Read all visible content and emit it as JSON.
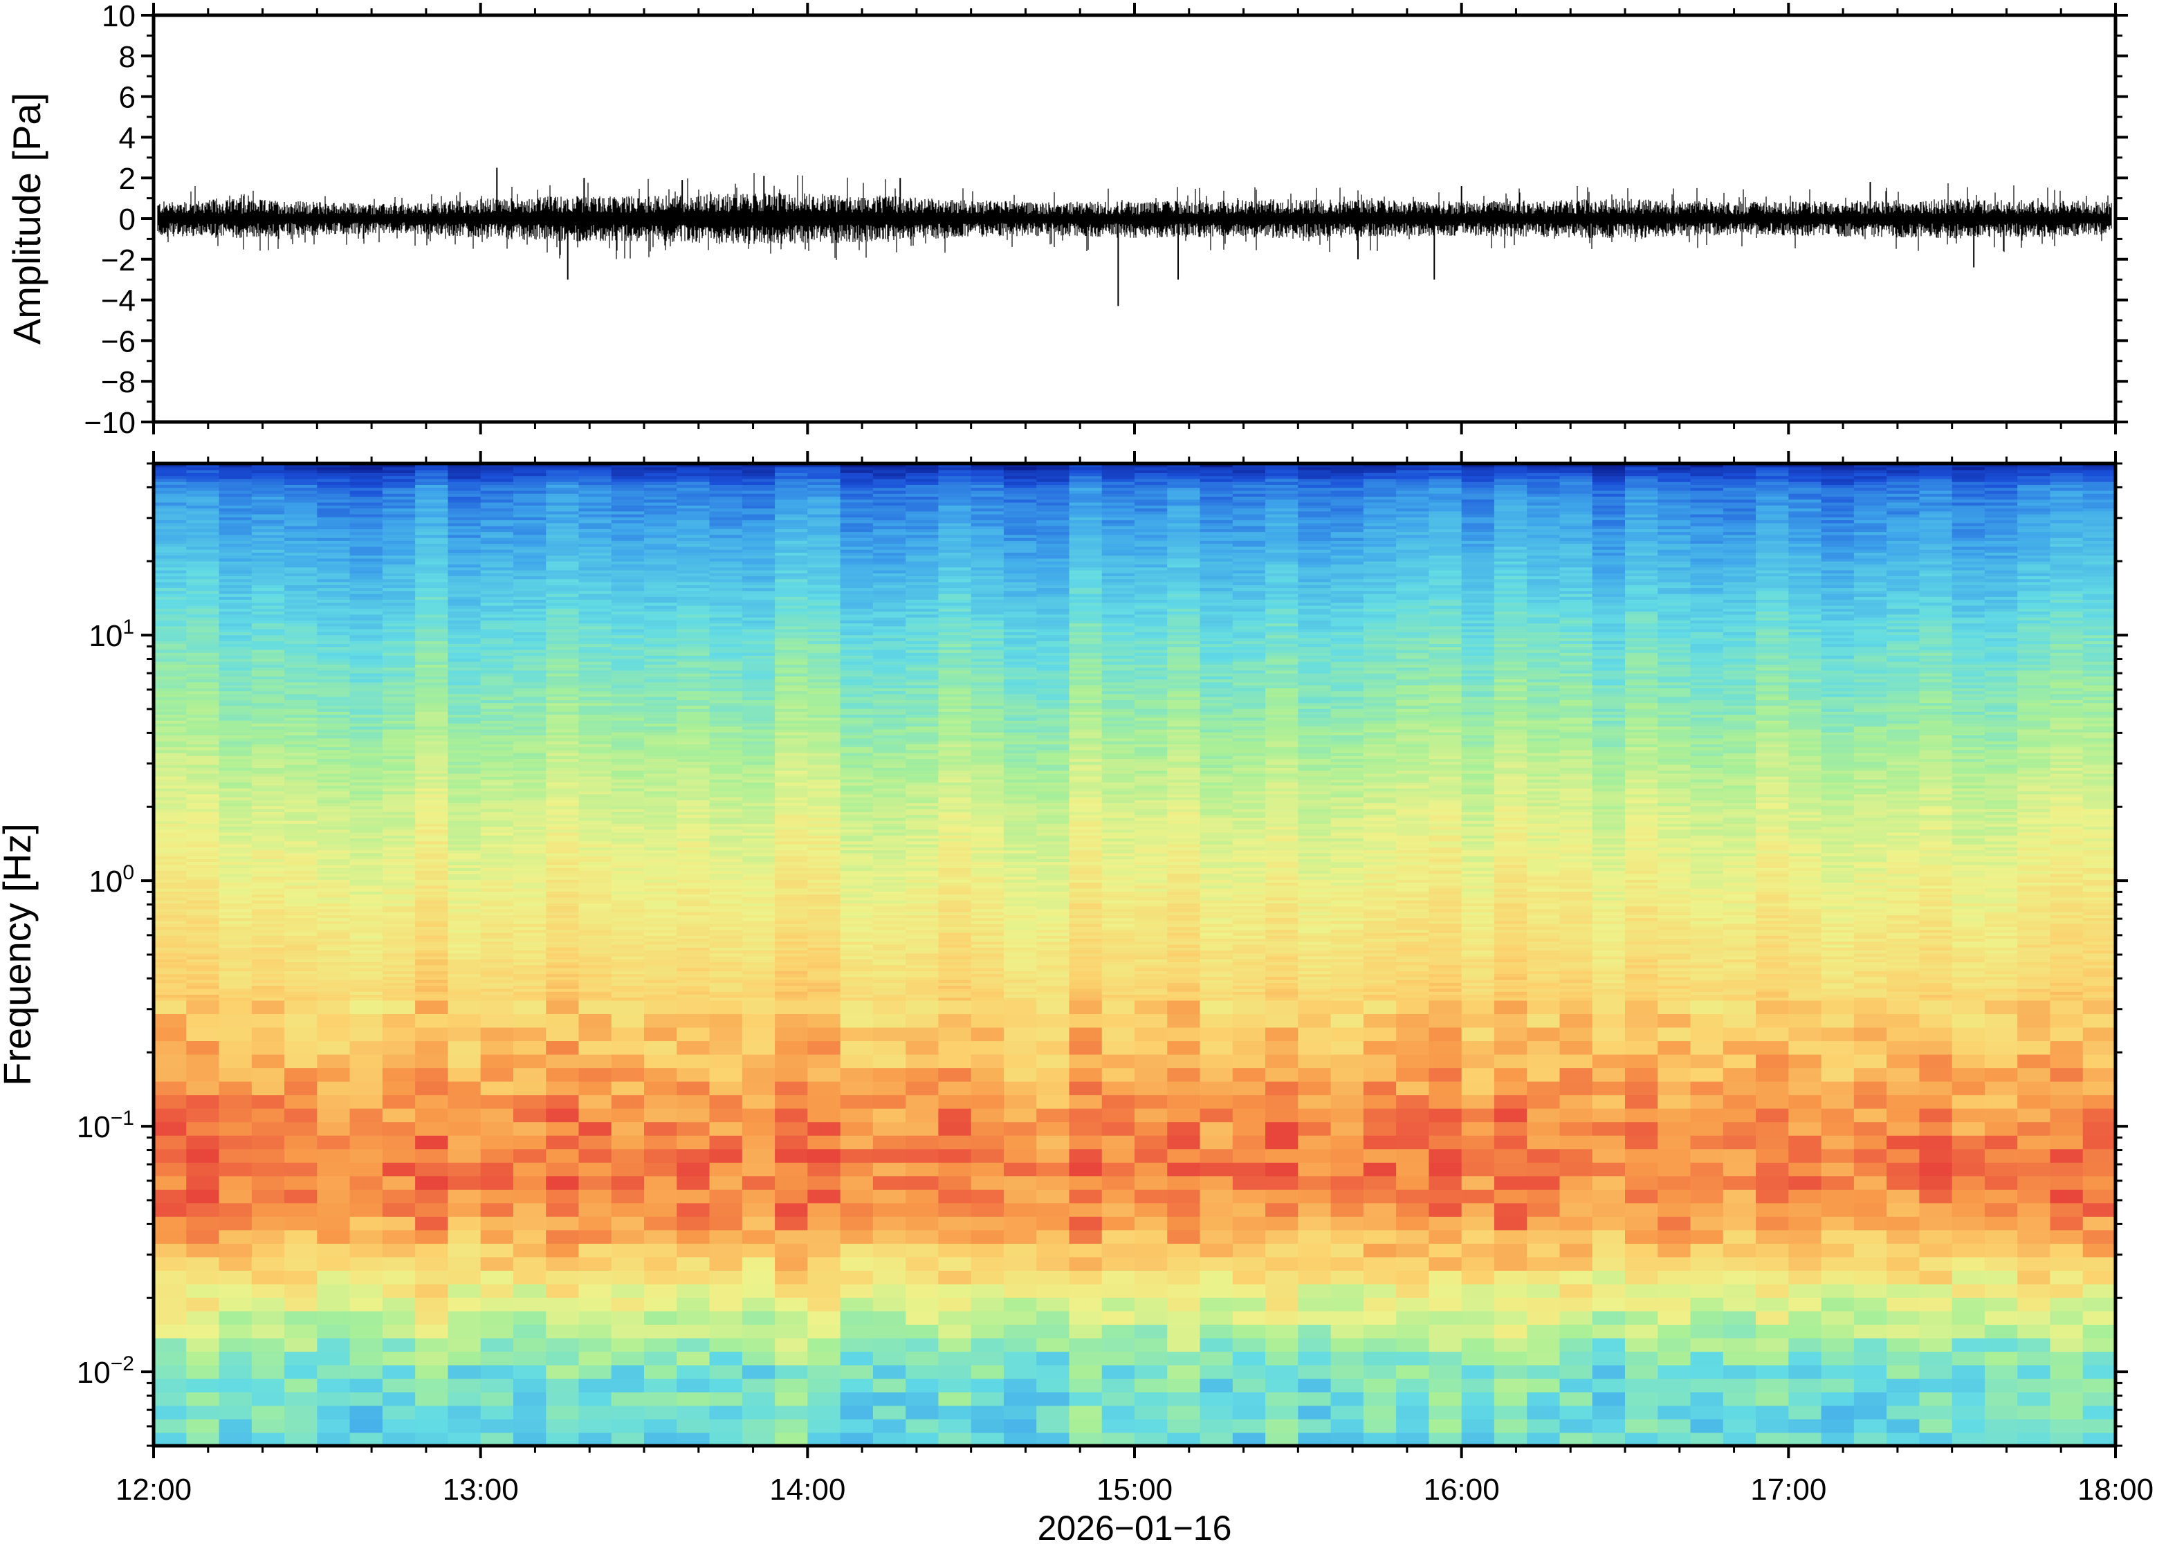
{
  "chart_data": [
    {
      "type": "line",
      "ylabel": "Amplitude [Pa]",
      "ylim": [
        -10,
        10
      ],
      "yticks": [
        10,
        8,
        6,
        4,
        2,
        0,
        -2,
        -4,
        -6,
        -8,
        -10
      ],
      "ytick_labels": [
        "10",
        "8",
        "6",
        "4",
        "2",
        "0",
        "−2",
        "−4",
        "−6",
        "−8",
        "−10"
      ],
      "xlim": [
        "12:00",
        "18:00"
      ],
      "series": [
        {
          "color": "#000000",
          "x": [
            "12:00",
            "12:15",
            "12:30",
            "12:45",
            "13:00",
            "13:15",
            "13:30",
            "13:45",
            "14:00",
            "14:15",
            "14:30",
            "14:45",
            "15:00",
            "15:15",
            "15:30",
            "15:45",
            "16:00",
            "16:15",
            "16:30",
            "16:45",
            "17:00",
            "17:15",
            "17:30",
            "17:45",
            "18:00"
          ],
          "envelope_max": [
            1.2,
            1.4,
            1.2,
            1.0,
            1.4,
            1.6,
            1.6,
            1.8,
            1.8,
            1.6,
            1.3,
            1.2,
            1.2,
            1.3,
            1.4,
            1.3,
            1.2,
            1.3,
            1.4,
            1.2,
            1.2,
            1.3,
            1.4,
            1.3,
            1.2
          ],
          "envelope_min": [
            -1.2,
            -1.4,
            -1.2,
            -1.0,
            -1.4,
            -1.6,
            -1.6,
            -1.8,
            -1.8,
            -1.6,
            -1.3,
            -1.2,
            -1.4,
            -1.3,
            -1.4,
            -1.3,
            -1.2,
            -1.3,
            -1.4,
            -1.2,
            -1.2,
            -1.3,
            -1.4,
            -1.3,
            -1.2
          ],
          "peaks": [
            {
              "x": "13:03",
              "y": 2.5
            },
            {
              "x": "13:16",
              "y": -3.0
            },
            {
              "x": "13:19",
              "y": 2.0
            },
            {
              "x": "13:37",
              "y": 1.9
            },
            {
              "x": "13:52",
              "y": 2.1
            },
            {
              "x": "14:17",
              "y": 2.0
            },
            {
              "x": "14:57",
              "y": -4.3
            },
            {
              "x": "15:08",
              "y": -3.0
            },
            {
              "x": "15:41",
              "y": -2.0
            },
            {
              "x": "15:55",
              "y": -3.0
            },
            {
              "x": "16:00",
              "y": 1.6
            },
            {
              "x": "17:15",
              "y": 1.8
            },
            {
              "x": "17:34",
              "y": -2.4
            }
          ]
        }
      ]
    },
    {
      "type": "heatmap",
      "ylabel": "Frequency [Hz]",
      "xlabel": "2026−01−16",
      "yscale": "log",
      "ylim": [
        0.005,
        50
      ],
      "yticks": [
        0.01,
        0.1,
        1,
        10
      ],
      "ytick_labels": [
        {
          "base": "10",
          "exp": "−2"
        },
        {
          "base": "10",
          "exp": "−1"
        },
        {
          "base": "10",
          "exp": "0"
        },
        {
          "base": "10",
          "exp": "1"
        }
      ],
      "xticks": [
        "12:00",
        "13:00",
        "14:00",
        "15:00",
        "16:00",
        "17:00",
        "18:00"
      ],
      "xlim": [
        "12:00",
        "18:00"
      ],
      "colormap": [
        "#0a1a8c",
        "#1a4fd8",
        "#3fa6ea",
        "#63dbe4",
        "#a8ef98",
        "#eef28a",
        "#fbd26e",
        "#f89a4a",
        "#e8453b"
      ],
      "time_bins": 60,
      "freq_profile": {
        "freqs": [
          0.005,
          0.01,
          0.02,
          0.04,
          0.07,
          0.1,
          0.2,
          0.4,
          1,
          2,
          5,
          10,
          20,
          40,
          50
        ],
        "level": [
          0.38,
          0.42,
          0.62,
          0.86,
          0.93,
          0.9,
          0.8,
          0.72,
          0.64,
          0.58,
          0.47,
          0.4,
          0.3,
          0.2,
          0.05
        ]
      }
    }
  ]
}
